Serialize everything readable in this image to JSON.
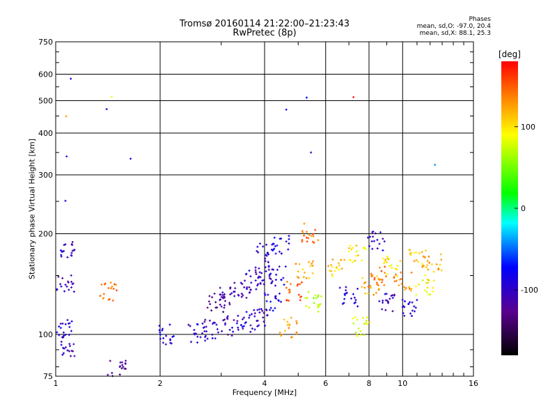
{
  "chart_data": {
    "type": "scatter",
    "title": "Tromsø 20160114 21:22:00–21:23:43",
    "subtitle": "RwPretec (8p)",
    "phases": {
      "header": "Phases",
      "o_line": "mean, sd,O:  -97.0, 20.4",
      "x_line": "mean, sd,X:  88.1, 25.3"
    },
    "xlabel": "Frequency [MHz]",
    "ylabel": "Stationary phase Virtual Height [km]",
    "x_scale": "log",
    "y_scale": "log",
    "xlim": [
      1,
      16
    ],
    "ylim": [
      75,
      750
    ],
    "x_ticks": [
      1,
      2,
      4,
      6,
      8,
      10,
      16
    ],
    "y_ticks": [
      75,
      100,
      200,
      300,
      400,
      500,
      600,
      750
    ],
    "colorbar": {
      "label": "[deg]",
      "range": [
        -180,
        180
      ],
      "ticks": [
        100,
        0,
        -100
      ]
    },
    "grid": true,
    "clusters": [
      {
        "x": 1.07,
        "y": 450,
        "phase": 120
      },
      {
        "x": 1.07,
        "y": 340,
        "phase": -100
      },
      {
        "x": 1.07,
        "y": 250,
        "phase": -110
      },
      {
        "x": 1.07,
        "y": 180,
        "phase": -100
      },
      {
        "x": 1.07,
        "y": 140,
        "phase": -110
      },
      {
        "x": 1.07,
        "y": 105,
        "phase": -100
      },
      {
        "x": 1.07,
        "y": 92,
        "phase": -110
      },
      {
        "x": 1.1,
        "y": 580,
        "phase": -80
      },
      {
        "x": 1.4,
        "y": 470,
        "phase": -90
      },
      {
        "x": 1.42,
        "y": 135,
        "phase": 140
      },
      {
        "x": 1.65,
        "y": 335,
        "phase": -80
      },
      {
        "x": 1.5,
        "y": 80,
        "phase": -130
      },
      {
        "x": 2.1,
        "y": 100,
        "phase": -90
      },
      {
        "x": 2.55,
        "y": 101,
        "phase": -100
      },
      {
        "x": 2.85,
        "y": 104,
        "phase": -105
      },
      {
        "x": 3.2,
        "y": 106,
        "phase": -110
      },
      {
        "x": 3.55,
        "y": 109,
        "phase": -100
      },
      {
        "x": 3.85,
        "y": 112,
        "phase": -105
      },
      {
        "x": 2.9,
        "y": 125,
        "phase": -130
      },
      {
        "x": 3.15,
        "y": 130,
        "phase": -120
      },
      {
        "x": 3.45,
        "y": 138,
        "phase": -110
      },
      {
        "x": 3.7,
        "y": 146,
        "phase": -100
      },
      {
        "x": 3.98,
        "y": 150,
        "phase": -110
      },
      {
        "x": 4.02,
        "y": 175,
        "phase": -100
      },
      {
        "x": 4.25,
        "y": 125,
        "phase": -90
      },
      {
        "x": 4.35,
        "y": 150,
        "phase": -100
      },
      {
        "x": 4.45,
        "y": 185,
        "phase": -90
      },
      {
        "x": 4.7,
        "y": 105,
        "phase": 130
      },
      {
        "x": 4.9,
        "y": 135,
        "phase": 150
      },
      {
        "x": 5.2,
        "y": 155,
        "phase": 120
      },
      {
        "x": 5.4,
        "y": 200,
        "phase": 140
      },
      {
        "x": 5.45,
        "y": 350,
        "phase": -80
      },
      {
        "x": 5.55,
        "y": 125,
        "phase": 60
      },
      {
        "x": 6.4,
        "y": 160,
        "phase": 110
      },
      {
        "x": 7.0,
        "y": 130,
        "phase": -90
      },
      {
        "x": 7.4,
        "y": 175,
        "phase": 100
      },
      {
        "x": 7.6,
        "y": 105,
        "phase": 80
      },
      {
        "x": 8.1,
        "y": 140,
        "phase": 120
      },
      {
        "x": 8.4,
        "y": 190,
        "phase": -100
      },
      {
        "x": 8.6,
        "y": 150,
        "phase": 140
      },
      {
        "x": 9.0,
        "y": 125,
        "phase": -110
      },
      {
        "x": 9.3,
        "y": 160,
        "phase": 100
      },
      {
        "x": 10.0,
        "y": 145,
        "phase": 130
      },
      {
        "x": 10.5,
        "y": 120,
        "phase": -90
      },
      {
        "x": 11.0,
        "y": 170,
        "phase": 110
      },
      {
        "x": 11.6,
        "y": 140,
        "phase": 90
      },
      {
        "x": 12.2,
        "y": 165,
        "phase": 120
      },
      {
        "x": 12.4,
        "y": 320,
        "phase": -60
      },
      {
        "x": 4.6,
        "y": 470,
        "phase": -80
      },
      {
        "x": 5.3,
        "y": 510,
        "phase": -60
      },
      {
        "x": 7.2,
        "y": 510,
        "phase": 160
      },
      {
        "x": 1.45,
        "y": 515,
        "phase": 100
      }
    ]
  }
}
